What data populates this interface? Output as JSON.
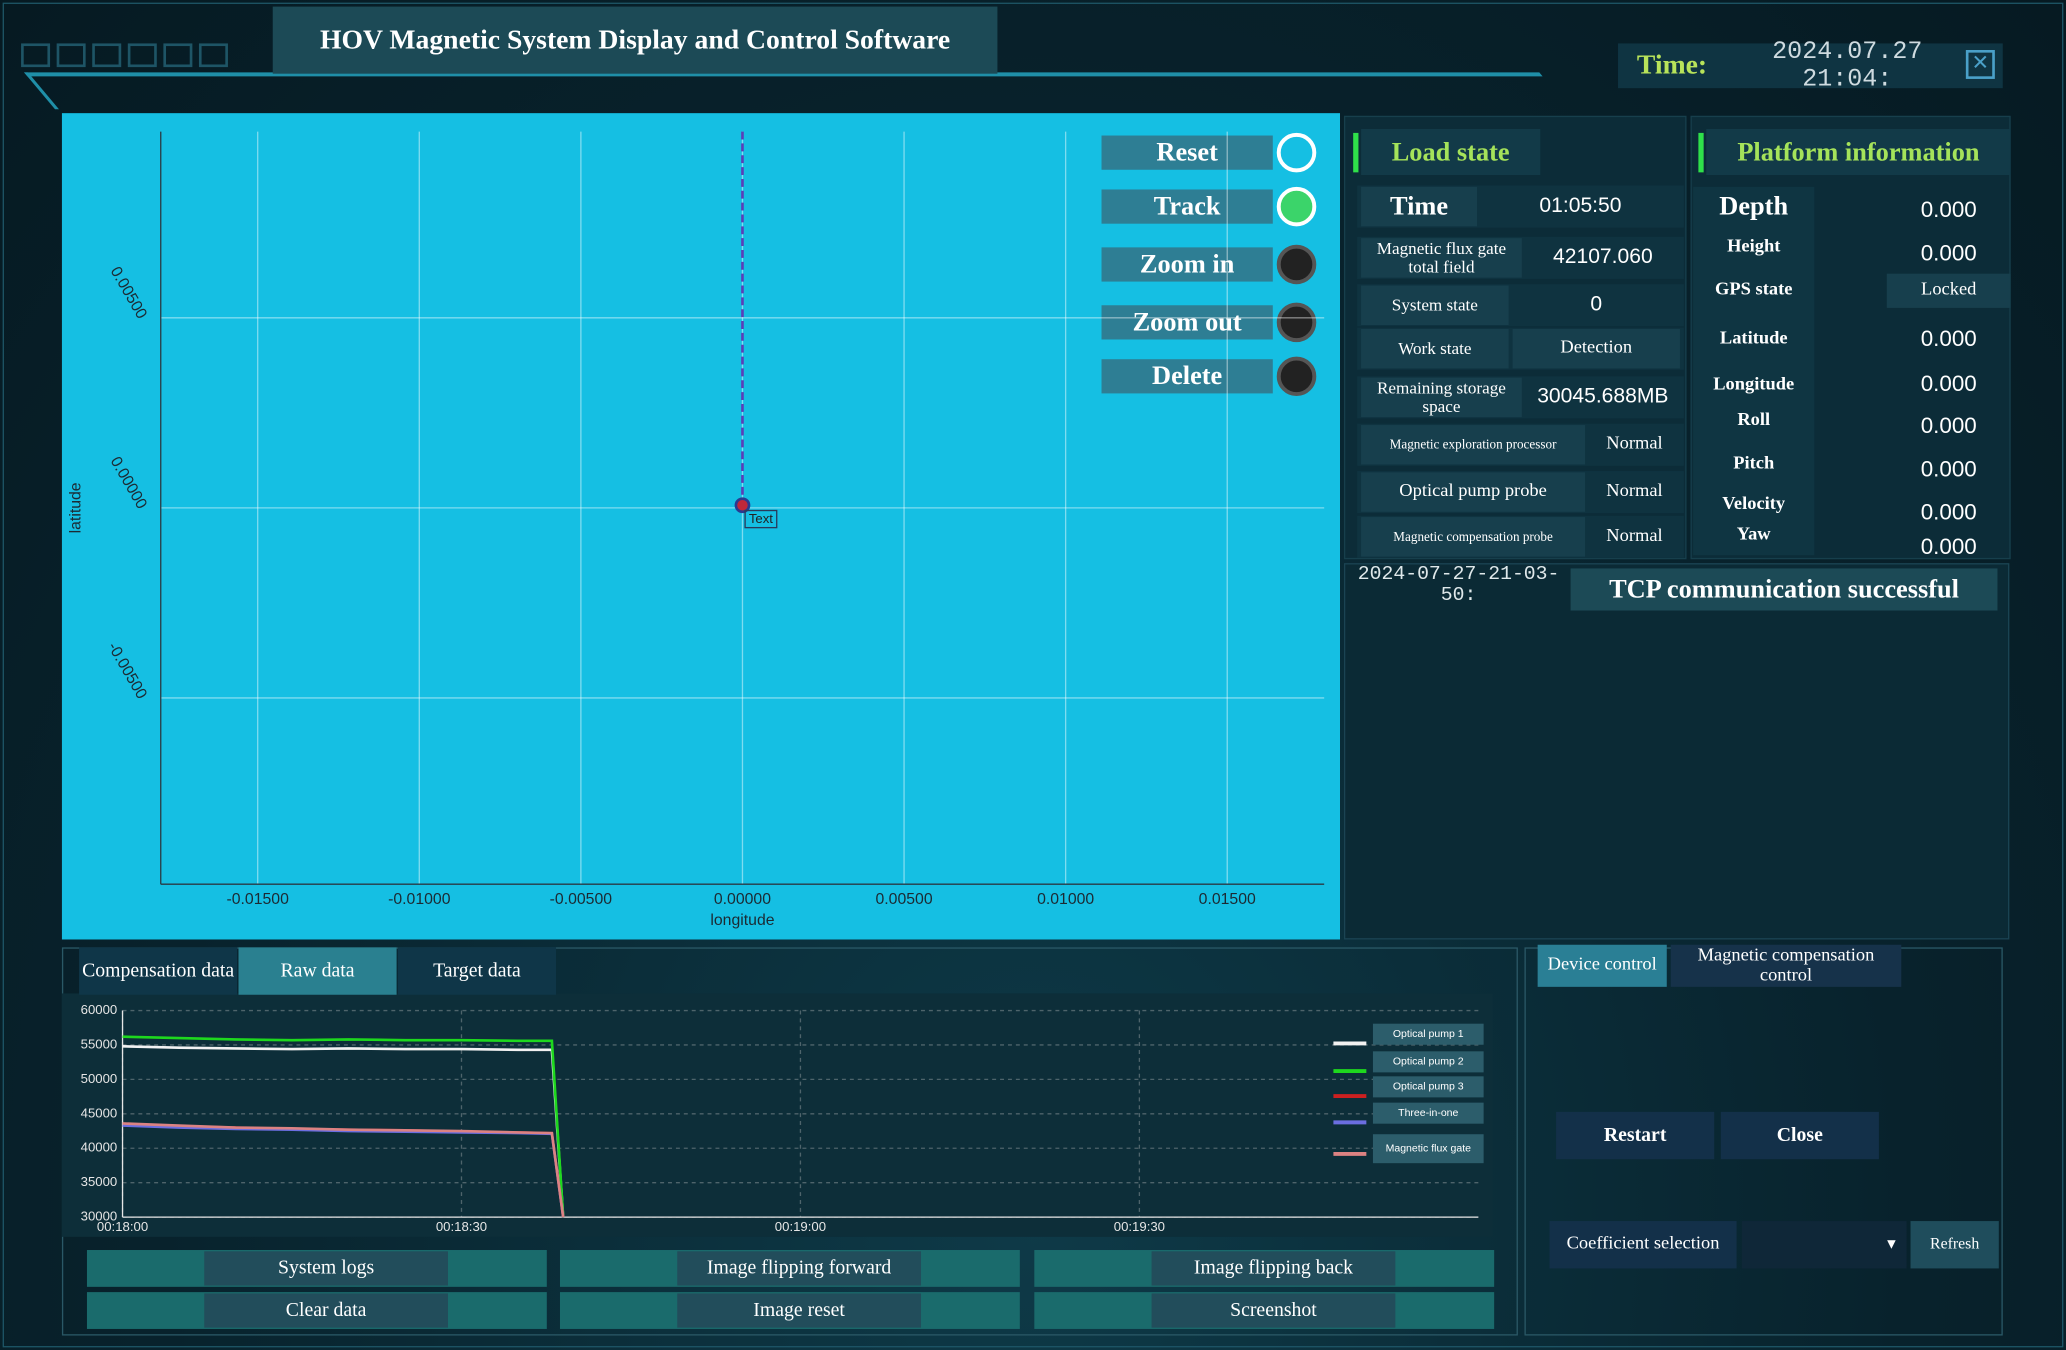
{
  "header": {
    "title": "HOV Magnetic System Display and Control Software",
    "time_label": "Time:",
    "time_value": "2024.07.27 21:04:"
  },
  "map_controls": [
    "Reset",
    "Track",
    "Zoom in",
    "Zoom out",
    "Delete"
  ],
  "load_state": {
    "title": "Load state",
    "rows": [
      [
        "Time",
        "01:05:50"
      ],
      [
        "Magnetic flux gate total field",
        "42107.060"
      ],
      [
        "System state",
        "0"
      ],
      [
        "Work state",
        "Detection"
      ],
      [
        "Remaining storage space",
        "30045.688MB"
      ],
      [
        "Magnetic exploration processor",
        "Normal"
      ],
      [
        "Optical pump probe",
        "Normal"
      ],
      [
        "Magnetic compensation probe",
        "Normal"
      ]
    ]
  },
  "platform_information": {
    "title": "Platform information",
    "rows": [
      [
        "Depth",
        "0.000"
      ],
      [
        "Height",
        "0.000"
      ],
      [
        "GPS state",
        "Locked"
      ],
      [
        "Latitude",
        "0.000"
      ],
      [
        "Longitude",
        "0.000"
      ],
      [
        "Roll",
        "0.000"
      ],
      [
        "Pitch",
        "0.000"
      ],
      [
        "Velocity",
        "0.000"
      ],
      [
        "Yaw",
        "0.000"
      ]
    ]
  },
  "log": {
    "timestamp": "2024-07-27-21-03-50:",
    "message": "TCP communication successful"
  },
  "data_tabs": [
    "Compensation data",
    "Raw data",
    "Target data"
  ],
  "bottom_buttons": [
    [
      "System logs",
      "Image flipping forward",
      "Image flipping back"
    ],
    [
      "Clear data",
      "Image reset",
      "Screenshot"
    ]
  ],
  "control_tabs": [
    "Device control",
    "Magnetic compensation control"
  ],
  "device_buttons": [
    "Restart",
    "Close"
  ],
  "coefficient_label": "Coefficient selection",
  "refresh": "Refresh",
  "chart_data": [
    {
      "type": "line",
      "x_label": "longitude",
      "y_label": "latitude",
      "x": [
        0,
        0
      ],
      "values": [
        0.0099,
        0
      ],
      "color": "#5b3fb8",
      "annotation": "Text",
      "xlim": [
        -0.018,
        0.018
      ],
      "ylim": [
        -0.0099,
        0.0099
      ],
      "grid": true,
      "xticks": [
        {
          "value": -0.015,
          "label": "-0.01500"
        },
        {
          "value": -0.01,
          "label": "-0.01000"
        },
        {
          "value": -0.005,
          "label": "-0.00500"
        },
        {
          "value": 0,
          "label": "0.00000"
        },
        {
          "value": 0.005,
          "label": "0.00500"
        },
        {
          "value": 0.01,
          "label": "0.01000"
        },
        {
          "value": 0.015,
          "label": "0.01500"
        }
      ],
      "yticks": [
        {
          "value": -0.005,
          "label": "-0.00500"
        },
        {
          "value": 0,
          "label": "0.00000"
        },
        {
          "value": 0.005,
          "label": "0.00500"
        }
      ]
    },
    {
      "type": "line",
      "x": [
        "00:18:00",
        "00:18:05",
        "00:18:10",
        "00:18:15",
        "00:18:20",
        "00:18:25",
        "00:18:30",
        "00:18:35",
        "00:18:38",
        "00:18:39"
      ],
      "xlim": [
        "00:18:00",
        "00:20:00"
      ],
      "xticks": [
        "00:18:00",
        "00:18:30",
        "00:19:00",
        "00:19:30"
      ],
      "ylim": [
        30000,
        60000
      ],
      "yticks": [
        30000,
        35000,
        40000,
        45000,
        50000,
        55000,
        60000
      ],
      "grid": true,
      "series": [
        {
          "name": "Optical pump 1",
          "color": "#f2f2f2",
          "values": [
            54800,
            54600,
            54500,
            54400,
            54500,
            54400,
            54400,
            54300,
            54300,
            30000
          ]
        },
        {
          "name": "Optical pump 2",
          "color": "#1ed81e",
          "values": [
            56200,
            56000,
            55800,
            55700,
            55800,
            55700,
            55700,
            55600,
            55600,
            30000
          ]
        },
        {
          "name": "Optical pump 3",
          "color": "#cc2020",
          "values": [
            43500,
            43200,
            43000,
            42800,
            42700,
            42600,
            42400,
            42300,
            42200,
            30000
          ]
        },
        {
          "name": "Three-in-one",
          "color": "#6b6ee0",
          "values": [
            43300,
            43000,
            42800,
            42700,
            42500,
            42400,
            42300,
            42200,
            42100,
            30000
          ]
        },
        {
          "name": "Magnetic flux gate",
          "color": "#dc8282",
          "values": [
            43600,
            43300,
            43000,
            42900,
            42700,
            42600,
            42500,
            42300,
            42200,
            30000
          ]
        }
      ]
    }
  ]
}
